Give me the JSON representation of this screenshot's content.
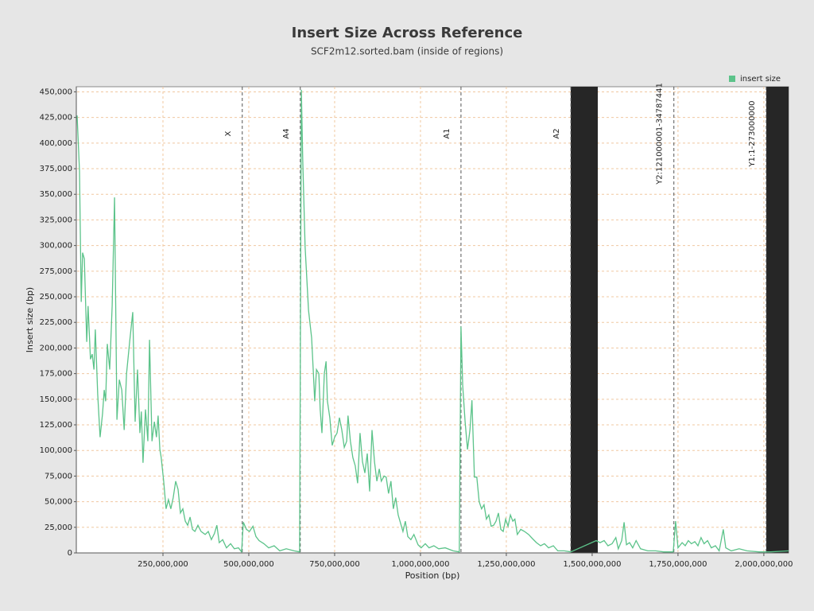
{
  "chart_data": {
    "type": "line",
    "title": "Insert Size Across Reference",
    "subtitle": "SCF2m12.sorted.bam (inside of regions)",
    "x_label": "Position (bp)",
    "y_label": "Insert size (bp)",
    "legend_position": "top-right",
    "grid": true,
    "xlim": [
      0,
      2072000000
    ],
    "ylim": [
      0,
      455000
    ],
    "xticks": [
      {
        "value": 250000000,
        "label": "250,000,000"
      },
      {
        "value": 500000000,
        "label": "500,000,000"
      },
      {
        "value": 750000000,
        "label": "750,000,000"
      },
      {
        "value": 1000000000,
        "label": "1,000,000,000"
      },
      {
        "value": 1250000000,
        "label": "1,250,000,000"
      },
      {
        "value": 1500000000,
        "label": "1,500,000,000"
      },
      {
        "value": 1750000000,
        "label": "1,750,000,000"
      },
      {
        "value": 2000000000,
        "label": "2,000,000,000"
      }
    ],
    "yticks": [
      0,
      {
        "value": 25000,
        "label": "25,000"
      },
      {
        "value": 50000,
        "label": "50,000"
      },
      {
        "value": 75000,
        "label": "75,000"
      },
      {
        "value": 100000,
        "label": "100,000"
      },
      {
        "value": 125000,
        "label": "125,000"
      },
      {
        "value": 150000,
        "label": "150,000"
      },
      {
        "value": 175000,
        "label": "175,000"
      },
      {
        "value": 200000,
        "label": "200,000"
      },
      {
        "value": 225000,
        "label": "225,000"
      },
      {
        "value": 250000,
        "label": "250,000"
      },
      {
        "value": 275000,
        "label": "275,000"
      },
      {
        "value": 300000,
        "label": "300,000"
      },
      {
        "value": 325000,
        "label": "325,000"
      },
      {
        "value": 350000,
        "label": "350,000"
      },
      {
        "value": 375000,
        "label": "375,000"
      },
      {
        "value": 400000,
        "label": "400,000"
      },
      {
        "value": 425000,
        "label": "425,000"
      },
      {
        "value": 450000,
        "label": "450,000"
      }
    ],
    "regions": [
      {
        "label": "X",
        "end": 481000000
      },
      {
        "label": "A4",
        "end": 650000000
      },
      {
        "label": "A1",
        "end": 1118000000
      },
      {
        "label": "A2",
        "end": 1438000000
      },
      {
        "label": "Y2:121000001-34787441",
        "end": 1738000000
      },
      {
        "label": "Y1:1-273000000",
        "end": 2007000000
      }
    ],
    "series": [
      {
        "name": "insert size",
        "color": "#5cc38a",
        "x": [
          0,
          7000000,
          12000000,
          16000000,
          21000000,
          28000000,
          32000000,
          39000000,
          44000000,
          49000000,
          53000000,
          60000000,
          67000000,
          74000000,
          79000000,
          83000000,
          88000000,
          95000000,
          102000000,
          109000000,
          116000000,
          123000000,
          130000000,
          137000000,
          144000000,
          153000000,
          162000000,
          169000000,
          176000000,
          183000000,
          187000000,
          192000000,
          199000000,
          206000000,
          211000000,
          218000000,
          225000000,
          231000000,
          236000000,
          241000000,
          245000000,
          252000000,
          259000000,
          266000000,
          273000000,
          280000000,
          287000000,
          294000000,
          301000000,
          308000000,
          315000000,
          322000000,
          329000000,
          336000000,
          343000000,
          352000000,
          361000000,
          373000000,
          382000000,
          391000000,
          400000000,
          407000000,
          414000000,
          424000000,
          435000000,
          447000000,
          458000000,
          470000000,
          479000000,
          484000000,
          493000000,
          502000000,
          512000000,
          521000000,
          530000000,
          544000000,
          558000000,
          574000000,
          590000000,
          609000000,
          632000000,
          648000000,
          653000000,
          657000000,
          664000000,
          674000000,
          683000000,
          688000000,
          692000000,
          697000000,
          704000000,
          708000000,
          713000000,
          720000000,
          725000000,
          729000000,
          736000000,
          743000000,
          750000000,
          757000000,
          764000000,
          771000000,
          778000000,
          785000000,
          789000000,
          796000000,
          803000000,
          810000000,
          817000000,
          824000000,
          831000000,
          838000000,
          845000000,
          852000000,
          859000000,
          866000000,
          873000000,
          880000000,
          886000000,
          894000000,
          900000000,
          907000000,
          914000000,
          921000000,
          928000000,
          935000000,
          942000000,
          949000000,
          956000000,
          963000000,
          972000000,
          981000000,
          993000000,
          1002000000,
          1014000000,
          1025000000,
          1039000000,
          1053000000,
          1072000000,
          1095000000,
          1113000000,
          1118000000,
          1123000000,
          1130000000,
          1137000000,
          1144000000,
          1150000000,
          1157000000,
          1164000000,
          1171000000,
          1178000000,
          1185000000,
          1192000000,
          1199000000,
          1206000000,
          1213000000,
          1220000000,
          1227000000,
          1234000000,
          1241000000,
          1248000000,
          1255000000,
          1262000000,
          1269000000,
          1275000000,
          1282000000,
          1292000000,
          1303000000,
          1315000000,
          1326000000,
          1338000000,
          1350000000,
          1361000000,
          1373000000,
          1387000000,
          1400000000,
          1419000000,
          1438000000,
          1512000000,
          1523000000,
          1535000000,
          1546000000,
          1558000000,
          1569000000,
          1576000000,
          1586000000,
          1593000000,
          1600000000,
          1609000000,
          1618000000,
          1628000000,
          1641000000,
          1662000000,
          1685000000,
          1708000000,
          1736000000,
          1743000000,
          1750000000,
          1762000000,
          1771000000,
          1780000000,
          1789000000,
          1799000000,
          1808000000,
          1817000000,
          1826000000,
          1836000000,
          1847000000,
          1859000000,
          1870000000,
          1882000000,
          1889000000,
          1905000000,
          1928000000,
          1951000000,
          1986000000,
          2020000000,
          2072000000
        ],
        "values": [
          427000,
          373000,
          245000,
          293000,
          287000,
          206000,
          241000,
          189000,
          194000,
          179000,
          218000,
          155000,
          113000,
          136000,
          159000,
          148000,
          204000,
          179000,
          241000,
          347000,
          130000,
          169000,
          159000,
          120000,
          175000,
          206000,
          235000,
          128000,
          179000,
          117000,
          138000,
          88000,
          140000,
          109000,
          208000,
          109000,
          128000,
          113000,
          134000,
          101000,
          93000,
          70000,
          43000,
          52000,
          43000,
          54000,
          70000,
          62000,
          39000,
          43000,
          31000,
          27000,
          35000,
          23000,
          21000,
          27000,
          21000,
          18000,
          21000,
          13000,
          19000,
          27000,
          10000,
          13000,
          5000,
          9000,
          4000,
          5000,
          1000,
          30000,
          23000,
          21000,
          26000,
          16000,
          12000,
          9000,
          5000,
          7000,
          2000,
          4000,
          2000,
          1000,
          452000,
          385000,
          299000,
          237000,
          210000,
          176000,
          148000,
          179000,
          175000,
          140000,
          117000,
          175000,
          187000,
          148000,
          132000,
          105000,
          113000,
          117000,
          132000,
          120000,
          103000,
          109000,
          134000,
          109000,
          93000,
          85000,
          68000,
          117000,
          89000,
          78000,
          97000,
          60000,
          120000,
          89000,
          70000,
          82000,
          70000,
          75000,
          74000,
          58000,
          70000,
          43000,
          54000,
          37000,
          29000,
          21000,
          31000,
          16000,
          13000,
          18000,
          8000,
          5000,
          9000,
          5000,
          7000,
          4000,
          5000,
          2000,
          1000,
          221000,
          163000,
          128000,
          101000,
          120000,
          149000,
          74000,
          74000,
          50000,
          43000,
          47000,
          33000,
          37000,
          26000,
          27000,
          31000,
          39000,
          23000,
          21000,
          33000,
          26000,
          37000,
          31000,
          33000,
          18000,
          23000,
          21000,
          18000,
          14000,
          10000,
          7000,
          9000,
          5000,
          7000,
          2000,
          2000,
          1000,
          12000,
          10000,
          12000,
          7000,
          9000,
          15000,
          4000,
          12000,
          30000,
          8000,
          10000,
          5000,
          12000,
          4000,
          2000,
          2000,
          1000,
          1000,
          31000,
          5000,
          10000,
          7000,
          12000,
          9000,
          11000,
          7000,
          15000,
          9000,
          12000,
          5000,
          7000,
          2000,
          23000,
          5000,
          2000,
          4000,
          2000,
          1000,
          1000,
          2000
        ]
      }
    ]
  }
}
